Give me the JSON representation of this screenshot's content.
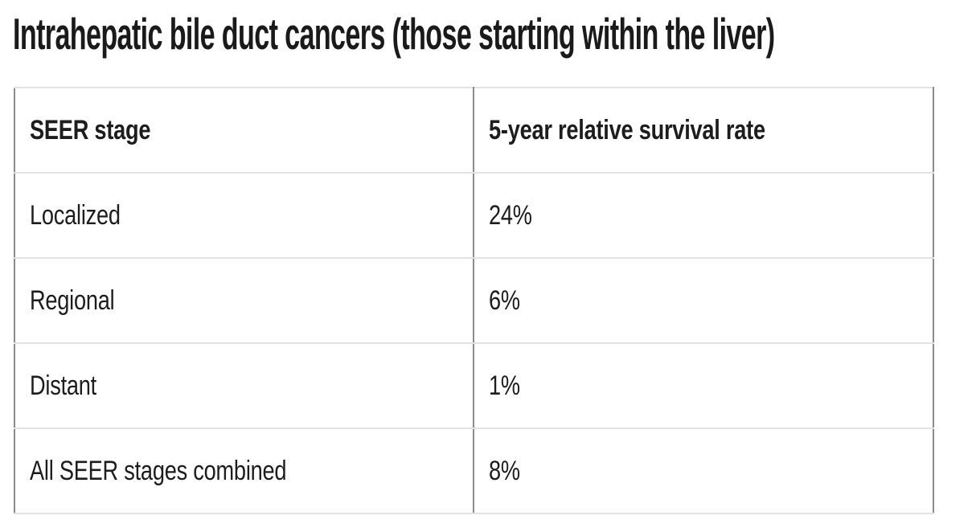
{
  "title": "Intrahepatic bile duct cancers (those starting within the liver)",
  "table": {
    "columns": [
      "SEER stage",
      "5-year relative survival rate"
    ],
    "rows": [
      {
        "stage": "Localized",
        "rate": "24%"
      },
      {
        "stage": "Regional",
        "rate": "6%"
      },
      {
        "stage": "Distant",
        "rate": "1%"
      },
      {
        "stage": "All SEER stages combined",
        "rate": "8%"
      }
    ]
  },
  "colors": {
    "text": "#1d1d1d",
    "title_text": "#1a1a1a",
    "vertical_border": "#8c8c8c",
    "horizontal_border": "#e3e3e3",
    "background": "#ffffff"
  }
}
